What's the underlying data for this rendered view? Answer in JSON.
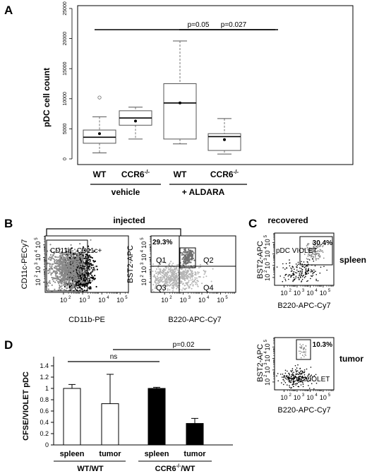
{
  "panelA": {
    "letter": "A",
    "ylabel": "pDC cell count",
    "yticks": [
      "0",
      "5000",
      "10000",
      "15000",
      "20000",
      "25000"
    ],
    "categories": [
      "WT",
      "CCR6",
      "WT",
      "CCR6"
    ],
    "cat_superscripts": [
      "",
      "-/-",
      "",
      "-/-"
    ],
    "groups": [
      "vehicle",
      "+ ALDARA"
    ],
    "p_values": [
      "p=0.05",
      "p=0.027"
    ]
  },
  "panelB": {
    "letter": "B",
    "injected": "injected",
    "left_ylabel": "CD11c-PECy7",
    "left_xlabel": "CD11b-PE",
    "left_gates": [
      "CD11b-",
      "CD11c+"
    ],
    "right_ylabel": "BST2-APC",
    "right_xlabel": "B220-APC-Cy7",
    "right_pct": "29.3%",
    "quadrants": [
      "Q1",
      "Q2",
      "Q3",
      "Q4"
    ]
  },
  "panelC": {
    "letter": "C",
    "recovered": "recovered",
    "spleen": "spleen",
    "tumor": "tumor",
    "spleen_pct": "30.4%",
    "tumor_pct": "10.3%",
    "gate_label": "pDC VIOLET",
    "ylabel": "BST2-APC",
    "xlabel": "B220-APC-Cy7"
  },
  "panelD": {
    "letter": "D",
    "ylabel": "CFSE/VIOLET pDC",
    "yticks": [
      "0",
      "0.2",
      "0.4",
      "0.6",
      "0.8",
      "1",
      "1.2",
      "1.4"
    ],
    "ns": "ns",
    "p_value": "p=0.02",
    "categories": [
      "spleen",
      "tumor",
      "spleen",
      "tumor"
    ],
    "group_wt": "WT/WT",
    "group_ccr6": "CCR6",
    "group_ccr6_sup": "-/-",
    "group_ccr6_tail": "/WT"
  },
  "log_ticks": [
    "10",
    "10",
    "10",
    "10"
  ],
  "log_exps": [
    "2",
    "3",
    "4",
    "5"
  ],
  "chart_data": [
    {
      "type": "box",
      "ylabel": "pDC cell count",
      "ylim": [
        0,
        25000
      ],
      "categories": [
        "WT vehicle",
        "CCR6-/- vehicle",
        "WT + ALDARA",
        "CCR6-/- + ALDARA"
      ],
      "boxes": [
        {
          "min": 1000,
          "q1": 2600,
          "median": 3600,
          "q3": 4800,
          "max": 7000,
          "mean": 4200,
          "outliers": [
            10200
          ]
        },
        {
          "min": 3300,
          "q1": 5600,
          "median": 6800,
          "q3": 8000,
          "max": 8600,
          "mean": 6300,
          "outliers": []
        },
        {
          "min": 2500,
          "q1": 3300,
          "median": 9300,
          "q3": 12500,
          "max": 19600,
          "mean": 9300,
          "outliers": []
        },
        {
          "min": 800,
          "q1": 1400,
          "median": 3700,
          "q3": 4200,
          "max": 6700,
          "mean": 3200,
          "outliers": []
        }
      ],
      "annotations": [
        {
          "text": "p=0.05",
          "from": "WT vehicle",
          "to": "WT + ALDARA"
        },
        {
          "text": "p=0.027",
          "from": "WT + ALDARA",
          "to": "CCR6-/- + ALDARA"
        }
      ],
      "grid": false
    },
    {
      "type": "bar",
      "ylabel": "CFSE/VIOLET pDC",
      "ylim": [
        0,
        1.4
      ],
      "categories": [
        "spleen",
        "tumor",
        "spleen",
        "tumor"
      ],
      "groups": [
        "WT/WT",
        "CCR6-/-/WT"
      ],
      "values": [
        1.0,
        0.73,
        1.0,
        0.38
      ],
      "errors": [
        0.07,
        0.52,
        0.02,
        0.09
      ],
      "fills": [
        "#ffffff",
        "#ffffff",
        "#000000",
        "#000000"
      ],
      "annotations": [
        {
          "text": "ns",
          "from": 0,
          "to": 2
        },
        {
          "text": "p=0.02",
          "from": 1,
          "to": 3
        }
      ],
      "grid": false
    }
  ]
}
